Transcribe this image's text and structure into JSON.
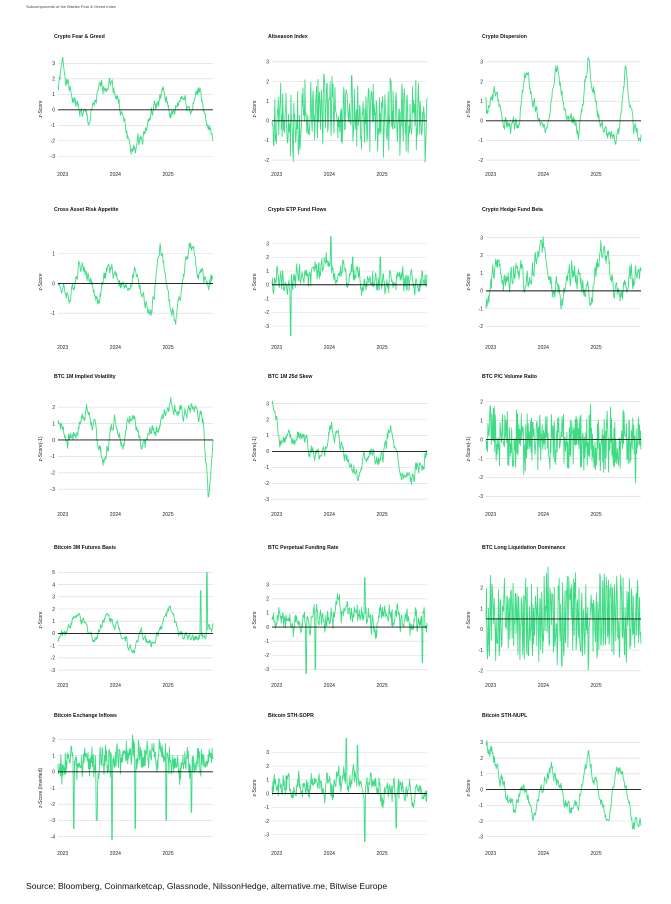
{
  "header": {
    "note": "Subcomponents of the Bitwise Fear & Greed Index"
  },
  "source": "Source: Bloomberg, Coinmarketcap, Glassnode, NilssonHedge, alternative.me, Bitwise Europe",
  "colors": {
    "series": "#3ddc84",
    "grid": "#d9d9d9",
    "zero": "#111111"
  },
  "chart_data": [
    {
      "type": "line",
      "title": "Crypto Fear & Greed",
      "ylabel": "z-Score",
      "yticks": [
        -3,
        -2,
        -1,
        0,
        1,
        2,
        3
      ],
      "ylim": [
        -3.5,
        3.6
      ],
      "xticks": [
        "2023",
        "2024",
        "2025"
      ],
      "start": 1.5,
      "noise": 0.35,
      "seed": 1,
      "anchors": [
        [
          0,
          1.2
        ],
        [
          0.03,
          3.0
        ],
        [
          0.08,
          1.0
        ],
        [
          0.14,
          0.0
        ],
        [
          0.2,
          -0.8
        ],
        [
          0.27,
          1.2
        ],
        [
          0.33,
          2.0
        ],
        [
          0.38,
          1.0
        ],
        [
          0.43,
          -1.0
        ],
        [
          0.48,
          -2.8
        ],
        [
          0.55,
          -1.5
        ],
        [
          0.62,
          0.0
        ],
        [
          0.68,
          1.0
        ],
        [
          0.74,
          -0.5
        ],
        [
          0.8,
          1.0
        ],
        [
          0.86,
          0.0
        ],
        [
          0.92,
          1.5
        ],
        [
          0.96,
          -1.5
        ],
        [
          1.0,
          -1.5
        ]
      ]
    },
    {
      "type": "line",
      "title": "Altseason Index",
      "ylabel": "z-Score",
      "yticks": [
        -2,
        -1,
        0,
        1,
        2,
        3
      ],
      "ylim": [
        -2.2,
        3.4
      ],
      "xticks": [
        "2023",
        "2024",
        "2025"
      ],
      "start": 0.0,
      "noise": 0.3,
      "seed": 2,
      "osc": 14,
      "oscAmp": 1.6,
      "anchors": [
        [
          0,
          0.3
        ],
        [
          0.2,
          0.2
        ],
        [
          0.4,
          0.5
        ],
        [
          0.6,
          0.2
        ],
        [
          0.8,
          0.5
        ],
        [
          1.0,
          0.0
        ]
      ]
    },
    {
      "type": "line",
      "title": "Crypto Dispersion",
      "ylabel": "z-Score",
      "yticks": [
        -2,
        -1,
        0,
        1,
        2,
        3
      ],
      "ylim": [
        -2.2,
        3.4
      ],
      "xticks": [
        "2023",
        "2024",
        "2025"
      ],
      "start": 1.2,
      "noise": 0.3,
      "seed": 3,
      "anchors": [
        [
          0,
          0.2
        ],
        [
          0.06,
          1.5
        ],
        [
          0.12,
          0.0
        ],
        [
          0.2,
          -0.5
        ],
        [
          0.26,
          2.5
        ],
        [
          0.32,
          0.5
        ],
        [
          0.38,
          -0.8
        ],
        [
          0.45,
          3.2
        ],
        [
          0.52,
          0.0
        ],
        [
          0.6,
          -0.5
        ],
        [
          0.66,
          3.3
        ],
        [
          0.72,
          0.5
        ],
        [
          0.8,
          -1.0
        ],
        [
          0.86,
          -0.5
        ],
        [
          0.9,
          2.8
        ],
        [
          0.95,
          -0.5
        ],
        [
          1.0,
          -0.8
        ]
      ]
    },
    {
      "type": "line",
      "title": "Cross Asset Risk Appetite",
      "ylabel": "z-Score",
      "yticks": [
        -1,
        0,
        1
      ],
      "ylim": [
        -1.8,
        1.9
      ],
      "xticks": [
        "2023",
        "2024",
        "2025"
      ],
      "start": 0.0,
      "noise": 0.18,
      "seed": 4,
      "anchors": [
        [
          0,
          0.0
        ],
        [
          0.08,
          -0.5
        ],
        [
          0.14,
          0.8
        ],
        [
          0.2,
          0.2
        ],
        [
          0.26,
          -0.6
        ],
        [
          0.32,
          0.5
        ],
        [
          0.38,
          0.3
        ],
        [
          0.44,
          -0.3
        ],
        [
          0.5,
          0.5
        ],
        [
          0.55,
          -0.5
        ],
        [
          0.6,
          -1.2
        ],
        [
          0.66,
          1.4
        ],
        [
          0.72,
          -0.8
        ],
        [
          0.76,
          -1.2
        ],
        [
          0.8,
          0.0
        ],
        [
          0.85,
          1.3
        ],
        [
          0.9,
          0.5
        ],
        [
          0.95,
          0.0
        ],
        [
          1.0,
          0.2
        ]
      ]
    },
    {
      "type": "line",
      "title": "Crypto ETP Fund Flows",
      "ylabel": "z-Score",
      "yticks": [
        -3,
        -2,
        -1,
        0,
        1,
        2,
        3
      ],
      "ylim": [
        -3.8,
        4.2
      ],
      "xticks": [
        "2023",
        "2024",
        "2025"
      ],
      "start": 0.0,
      "noise": 0.45,
      "seed": 5,
      "osc": 20,
      "oscAmp": 0.5,
      "anchors": [
        [
          0,
          0.0
        ],
        [
          0.2,
          0.5
        ],
        [
          0.4,
          1.0
        ],
        [
          0.6,
          0.3
        ],
        [
          0.8,
          0.5
        ],
        [
          1.0,
          0.2
        ]
      ],
      "spikes": [
        [
          0.12,
          -4.0
        ],
        [
          0.38,
          3.5
        ],
        [
          0.52,
          2.0
        ],
        [
          0.7,
          2.0
        ]
      ]
    },
    {
      "type": "line",
      "title": "Crypto Hedge Fund Beta",
      "ylabel": "z-Score",
      "yticks": [
        -2,
        -1,
        0,
        1,
        2,
        3
      ],
      "ylim": [
        -2.6,
        3.6
      ],
      "xticks": [
        "2023",
        "2024",
        "2025"
      ],
      "start": -1.0,
      "noise": 0.55,
      "seed": 6,
      "anchors": [
        [
          0,
          -0.5
        ],
        [
          0.08,
          1.5
        ],
        [
          0.14,
          0.5
        ],
        [
          0.2,
          2.0
        ],
        [
          0.26,
          0.0
        ],
        [
          0.32,
          1.5
        ],
        [
          0.38,
          2.5
        ],
        [
          0.44,
          0.5
        ],
        [
          0.5,
          -0.5
        ],
        [
          0.56,
          1.0
        ],
        [
          0.62,
          0.5
        ],
        [
          0.68,
          0.0
        ],
        [
          0.74,
          2.5
        ],
        [
          0.8,
          1.0
        ],
        [
          0.86,
          -0.5
        ],
        [
          0.92,
          0.5
        ],
        [
          1.0,
          1.5
        ]
      ]
    },
    {
      "type": "line",
      "title": "BTC 1M Implied Volatility",
      "ylabel": "z-Score(-1)",
      "yticks": [
        -3,
        -2,
        -1,
        0,
        1,
        2
      ],
      "ylim": [
        -3.9,
        2.8
      ],
      "xticks": [
        "2023",
        "2024",
        "2025"
      ],
      "start": 1.0,
      "noise": 0.35,
      "seed": 7,
      "anchors": [
        [
          0,
          1.5
        ],
        [
          0.06,
          0.0
        ],
        [
          0.12,
          0.5
        ],
        [
          0.18,
          2.0
        ],
        [
          0.24,
          0.5
        ],
        [
          0.3,
          -1.5
        ],
        [
          0.36,
          1.5
        ],
        [
          0.42,
          0.0
        ],
        [
          0.48,
          2.0
        ],
        [
          0.54,
          -1.0
        ],
        [
          0.6,
          0.5
        ],
        [
          0.66,
          1.0
        ],
        [
          0.72,
          2.5
        ],
        [
          0.8,
          1.5
        ],
        [
          0.88,
          2.0
        ],
        [
          0.94,
          1.0
        ],
        [
          0.97,
          -3.5
        ],
        [
          1.0,
          0.0
        ]
      ]
    },
    {
      "type": "line",
      "title": "BTC 1M 25d Skew",
      "ylabel": "z-Score(-1)",
      "yticks": [
        -3,
        -2,
        -1,
        0,
        1,
        2,
        3
      ],
      "ylim": [
        -3.3,
        3.6
      ],
      "xticks": [
        "2023",
        "2024",
        "2025"
      ],
      "start": 3.0,
      "noise": 0.4,
      "seed": 8,
      "anchors": [
        [
          0,
          3.0
        ],
        [
          0.05,
          1.0
        ],
        [
          0.12,
          0.5
        ],
        [
          0.2,
          1.0
        ],
        [
          0.26,
          0.0
        ],
        [
          0.32,
          -1.0
        ],
        [
          0.38,
          1.5
        ],
        [
          0.44,
          0.5
        ],
        [
          0.5,
          -0.5
        ],
        [
          0.56,
          -1.5
        ],
        [
          0.62,
          0.0
        ],
        [
          0.7,
          -1.0
        ],
        [
          0.76,
          1.5
        ],
        [
          0.82,
          -1.5
        ],
        [
          0.9,
          -2.0
        ],
        [
          0.95,
          -1.0
        ],
        [
          1.0,
          0.0
        ]
      ]
    },
    {
      "type": "line",
      "title": "BTC P/C Volume Ratio",
      "ylabel": "z-Score(-1)",
      "yticks": [
        -3,
        -2,
        -1,
        0,
        1,
        2
      ],
      "ylim": [
        -3.4,
        2.4
      ],
      "xticks": [
        "2023",
        "2024",
        "2025"
      ],
      "start": 0.0,
      "noise": 0.5,
      "seed": 9,
      "osc": 24,
      "oscAmp": 1.3,
      "anchors": [
        [
          0,
          0.5
        ],
        [
          0.2,
          0.0
        ],
        [
          0.4,
          -0.2
        ],
        [
          0.6,
          0.0
        ],
        [
          0.8,
          -0.2
        ],
        [
          1.0,
          0.0
        ]
      ]
    },
    {
      "type": "line",
      "title": "Bitcoin 3M Futures Basis",
      "ylabel": "z-Score",
      "yticks": [
        -3,
        -2,
        -1,
        0,
        1,
        2,
        3,
        4,
        5
      ],
      "ylim": [
        -3.4,
        5.6
      ],
      "xticks": [
        "2023",
        "2024",
        "2025"
      ],
      "start": -0.5,
      "noise": 0.3,
      "seed": 10,
      "anchors": [
        [
          0,
          -0.5
        ],
        [
          0.06,
          0.5
        ],
        [
          0.12,
          1.5
        ],
        [
          0.18,
          0.5
        ],
        [
          0.24,
          -0.5
        ],
        [
          0.3,
          1.5
        ],
        [
          0.36,
          1.0
        ],
        [
          0.42,
          0.0
        ],
        [
          0.48,
          -1.5
        ],
        [
          0.54,
          0.0
        ],
        [
          0.6,
          -1.0
        ],
        [
          0.66,
          0.5
        ],
        [
          0.72,
          2.0
        ],
        [
          0.78,
          0.0
        ],
        [
          0.84,
          -0.5
        ],
        [
          0.9,
          -0.5
        ],
        [
          1.0,
          0.5
        ]
      ],
      "spikes": [
        [
          0.92,
          3.5
        ],
        [
          0.96,
          5.0
        ]
      ]
    },
    {
      "type": "line",
      "title": "BTC Perpetual Funding Rate",
      "ylabel": "z-Score",
      "yticks": [
        -3,
        -2,
        -1,
        0,
        1,
        2,
        3
      ],
      "ylim": [
        -3.4,
        4.4
      ],
      "xticks": [
        "2023",
        "2024",
        "2025"
      ],
      "start": 0.5,
      "noise": 0.55,
      "seed": 11,
      "osc": 16,
      "oscAmp": 0.4,
      "anchors": [
        [
          0,
          0.5
        ],
        [
          0.15,
          0.5
        ],
        [
          0.3,
          0.8
        ],
        [
          0.45,
          1.2
        ],
        [
          0.6,
          0.3
        ],
        [
          0.75,
          1.0
        ],
        [
          0.9,
          0.5
        ],
        [
          1.0,
          0.2
        ]
      ],
      "spikes": [
        [
          0.22,
          -3.8
        ],
        [
          0.28,
          -3.0
        ],
        [
          0.6,
          3.5
        ],
        [
          0.97,
          -2.5
        ]
      ]
    },
    {
      "type": "line",
      "title": "BTC Long Liquidation Dominance",
      "ylabel": "z-Score",
      "yticks": [
        -2,
        -1,
        0,
        1,
        2
      ],
      "ylim": [
        -2.2,
        3.1
      ],
      "xticks": [
        "2023",
        "2024",
        "2025"
      ],
      "start": 0.5,
      "noise": 0.35,
      "seed": 12,
      "osc": 30,
      "oscAmp": 1.9,
      "anchors": [
        [
          0,
          0.5
        ],
        [
          0.3,
          0.5
        ],
        [
          0.6,
          0.4
        ],
        [
          1.0,
          0.5
        ]
      ],
      "zeroLine": 0.5
    },
    {
      "type": "line",
      "title": "Bitcoin Exchange Inflows",
      "ylabel": "z-Score (Inverted)",
      "yticks": [
        -4,
        -3,
        -2,
        -1,
        0,
        1,
        2
      ],
      "ylim": [
        -4.4,
        2.4
      ],
      "xticks": [
        "2023",
        "2024",
        "2025"
      ],
      "start": 0.5,
      "noise": 0.5,
      "seed": 13,
      "osc": 26,
      "oscAmp": 0.6,
      "anchors": [
        [
          0,
          0.3
        ],
        [
          0.2,
          0.7
        ],
        [
          0.4,
          0.9
        ],
        [
          0.6,
          0.9
        ],
        [
          0.8,
          0.5
        ],
        [
          1.0,
          0.5
        ]
      ],
      "spikes": [
        [
          0.1,
          -3.5
        ],
        [
          0.25,
          -3.0
        ],
        [
          0.35,
          -4.2
        ],
        [
          0.5,
          -3.5
        ],
        [
          0.7,
          -3.0
        ],
        [
          0.86,
          -2.5
        ]
      ]
    },
    {
      "type": "line",
      "title": "Bitcoin STH-SOPR",
      "ylabel": "z-Score",
      "yticks": [
        -3,
        -2,
        -1,
        0,
        1,
        2,
        3
      ],
      "ylim": [
        -3.6,
        4.4
      ],
      "xticks": [
        "2023",
        "2024",
        "2025"
      ],
      "start": 0.5,
      "noise": 0.55,
      "seed": 14,
      "osc": 18,
      "oscAmp": 0.5,
      "anchors": [
        [
          0,
          0.5
        ],
        [
          0.2,
          0.5
        ],
        [
          0.4,
          0.8
        ],
        [
          0.55,
          1.0
        ],
        [
          0.7,
          0.2
        ],
        [
          0.85,
          0.3
        ],
        [
          1.0,
          0.0
        ]
      ],
      "spikes": [
        [
          0.48,
          4.0
        ],
        [
          0.55,
          3.5
        ],
        [
          0.6,
          -3.5
        ],
        [
          0.8,
          -2.5
        ]
      ]
    },
    {
      "type": "line",
      "title": "Bitcoin STH-NUPL",
      "ylabel": "z-Score",
      "yticks": [
        -3,
        -2,
        -1,
        0,
        1,
        2,
        3
      ],
      "ylim": [
        -3.4,
        3.6
      ],
      "xticks": [
        "2023",
        "2024",
        "2025"
      ],
      "start": 3.0,
      "noise": 0.35,
      "seed": 15,
      "anchors": [
        [
          0,
          3.0
        ],
        [
          0.06,
          2.0
        ],
        [
          0.12,
          0.0
        ],
        [
          0.18,
          -1.5
        ],
        [
          0.24,
          0.5
        ],
        [
          0.3,
          -2.0
        ],
        [
          0.36,
          0.0
        ],
        [
          0.42,
          1.5
        ],
        [
          0.48,
          0.0
        ],
        [
          0.54,
          -1.5
        ],
        [
          0.6,
          -0.5
        ],
        [
          0.66,
          2.0
        ],
        [
          0.72,
          0.0
        ],
        [
          0.78,
          -2.0
        ],
        [
          0.84,
          1.5
        ],
        [
          0.9,
          0.5
        ],
        [
          0.95,
          -2.5
        ],
        [
          1.0,
          -2.0
        ]
      ]
    }
  ]
}
